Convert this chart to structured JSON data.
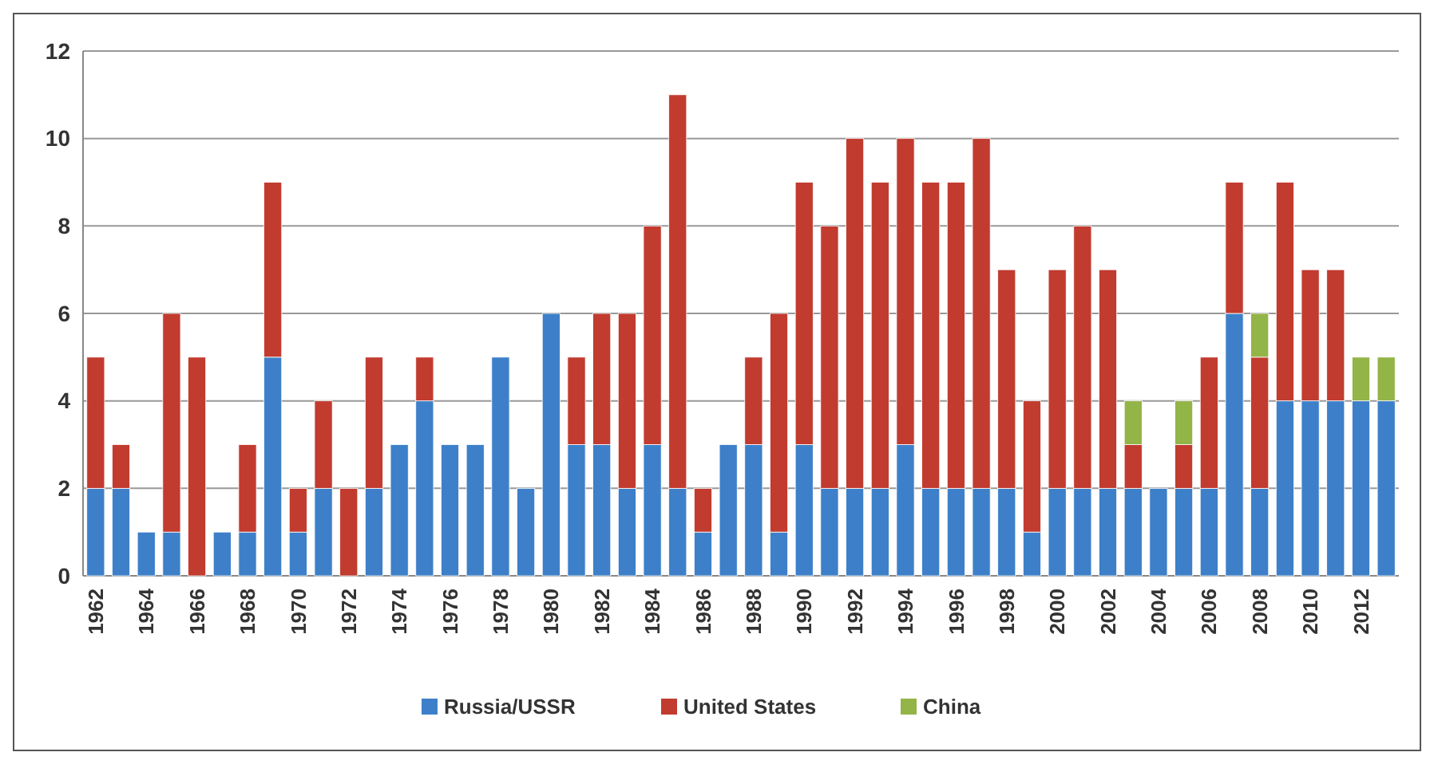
{
  "chart_data": {
    "type": "bar",
    "stacked": true,
    "categories": [
      "1962",
      null,
      "1964",
      null,
      "1966",
      null,
      "1968",
      null,
      "1970",
      null,
      "1972",
      null,
      "1974",
      null,
      "1976",
      null,
      "1978",
      null,
      "1980",
      null,
      "1982",
      null,
      "1984",
      null,
      "1986",
      null,
      "1988",
      null,
      "1990",
      null,
      "1992",
      null,
      "1994",
      null,
      "1996",
      null,
      "1998",
      null,
      "2000",
      null,
      "2002",
      null,
      "2004",
      null,
      "2006",
      null,
      "2008",
      null,
      "2010",
      null,
      "2012",
      null
    ],
    "series": [
      {
        "name": "Russia/USSR",
        "color": "#3d80c9",
        "values": [
          2,
          2,
          1,
          1,
          0,
          1,
          1,
          5,
          1,
          2,
          0,
          2,
          3,
          4,
          3,
          3,
          5,
          2,
          6,
          3,
          3,
          2,
          3,
          2,
          1,
          3,
          3,
          1,
          3,
          2,
          2,
          2,
          3,
          2,
          2,
          2,
          2,
          1,
          2,
          2,
          2,
          2,
          2,
          2,
          2,
          6,
          2,
          4,
          4,
          4,
          4,
          4
        ]
      },
      {
        "name": "United States",
        "color": "#c23b2f",
        "values": [
          3,
          1,
          0,
          5,
          5,
          0,
          2,
          4,
          1,
          2,
          2,
          3,
          0,
          1,
          0,
          0,
          0,
          0,
          0,
          2,
          3,
          4,
          5,
          9,
          1,
          0,
          2,
          5,
          6,
          6,
          8,
          7,
          7,
          7,
          7,
          8,
          5,
          3,
          5,
          6,
          5,
          1,
          0,
          1,
          3,
          3,
          3,
          5,
          3,
          3,
          0,
          0
        ]
      },
      {
        "name": "China",
        "color": "#93b447",
        "values": [
          0,
          0,
          0,
          0,
          0,
          0,
          0,
          0,
          0,
          0,
          0,
          0,
          0,
          0,
          0,
          0,
          0,
          0,
          0,
          0,
          0,
          0,
          0,
          0,
          0,
          0,
          0,
          0,
          0,
          0,
          0,
          0,
          0,
          0,
          0,
          0,
          0,
          0,
          0,
          0,
          0,
          1,
          0,
          1,
          0,
          0,
          1,
          0,
          0,
          0,
          1,
          1
        ]
      }
    ],
    "ylim": [
      0,
      12
    ],
    "yticks": [
      0,
      2,
      4,
      6,
      8,
      10,
      12
    ],
    "grid": "y",
    "legend": "bottom"
  }
}
